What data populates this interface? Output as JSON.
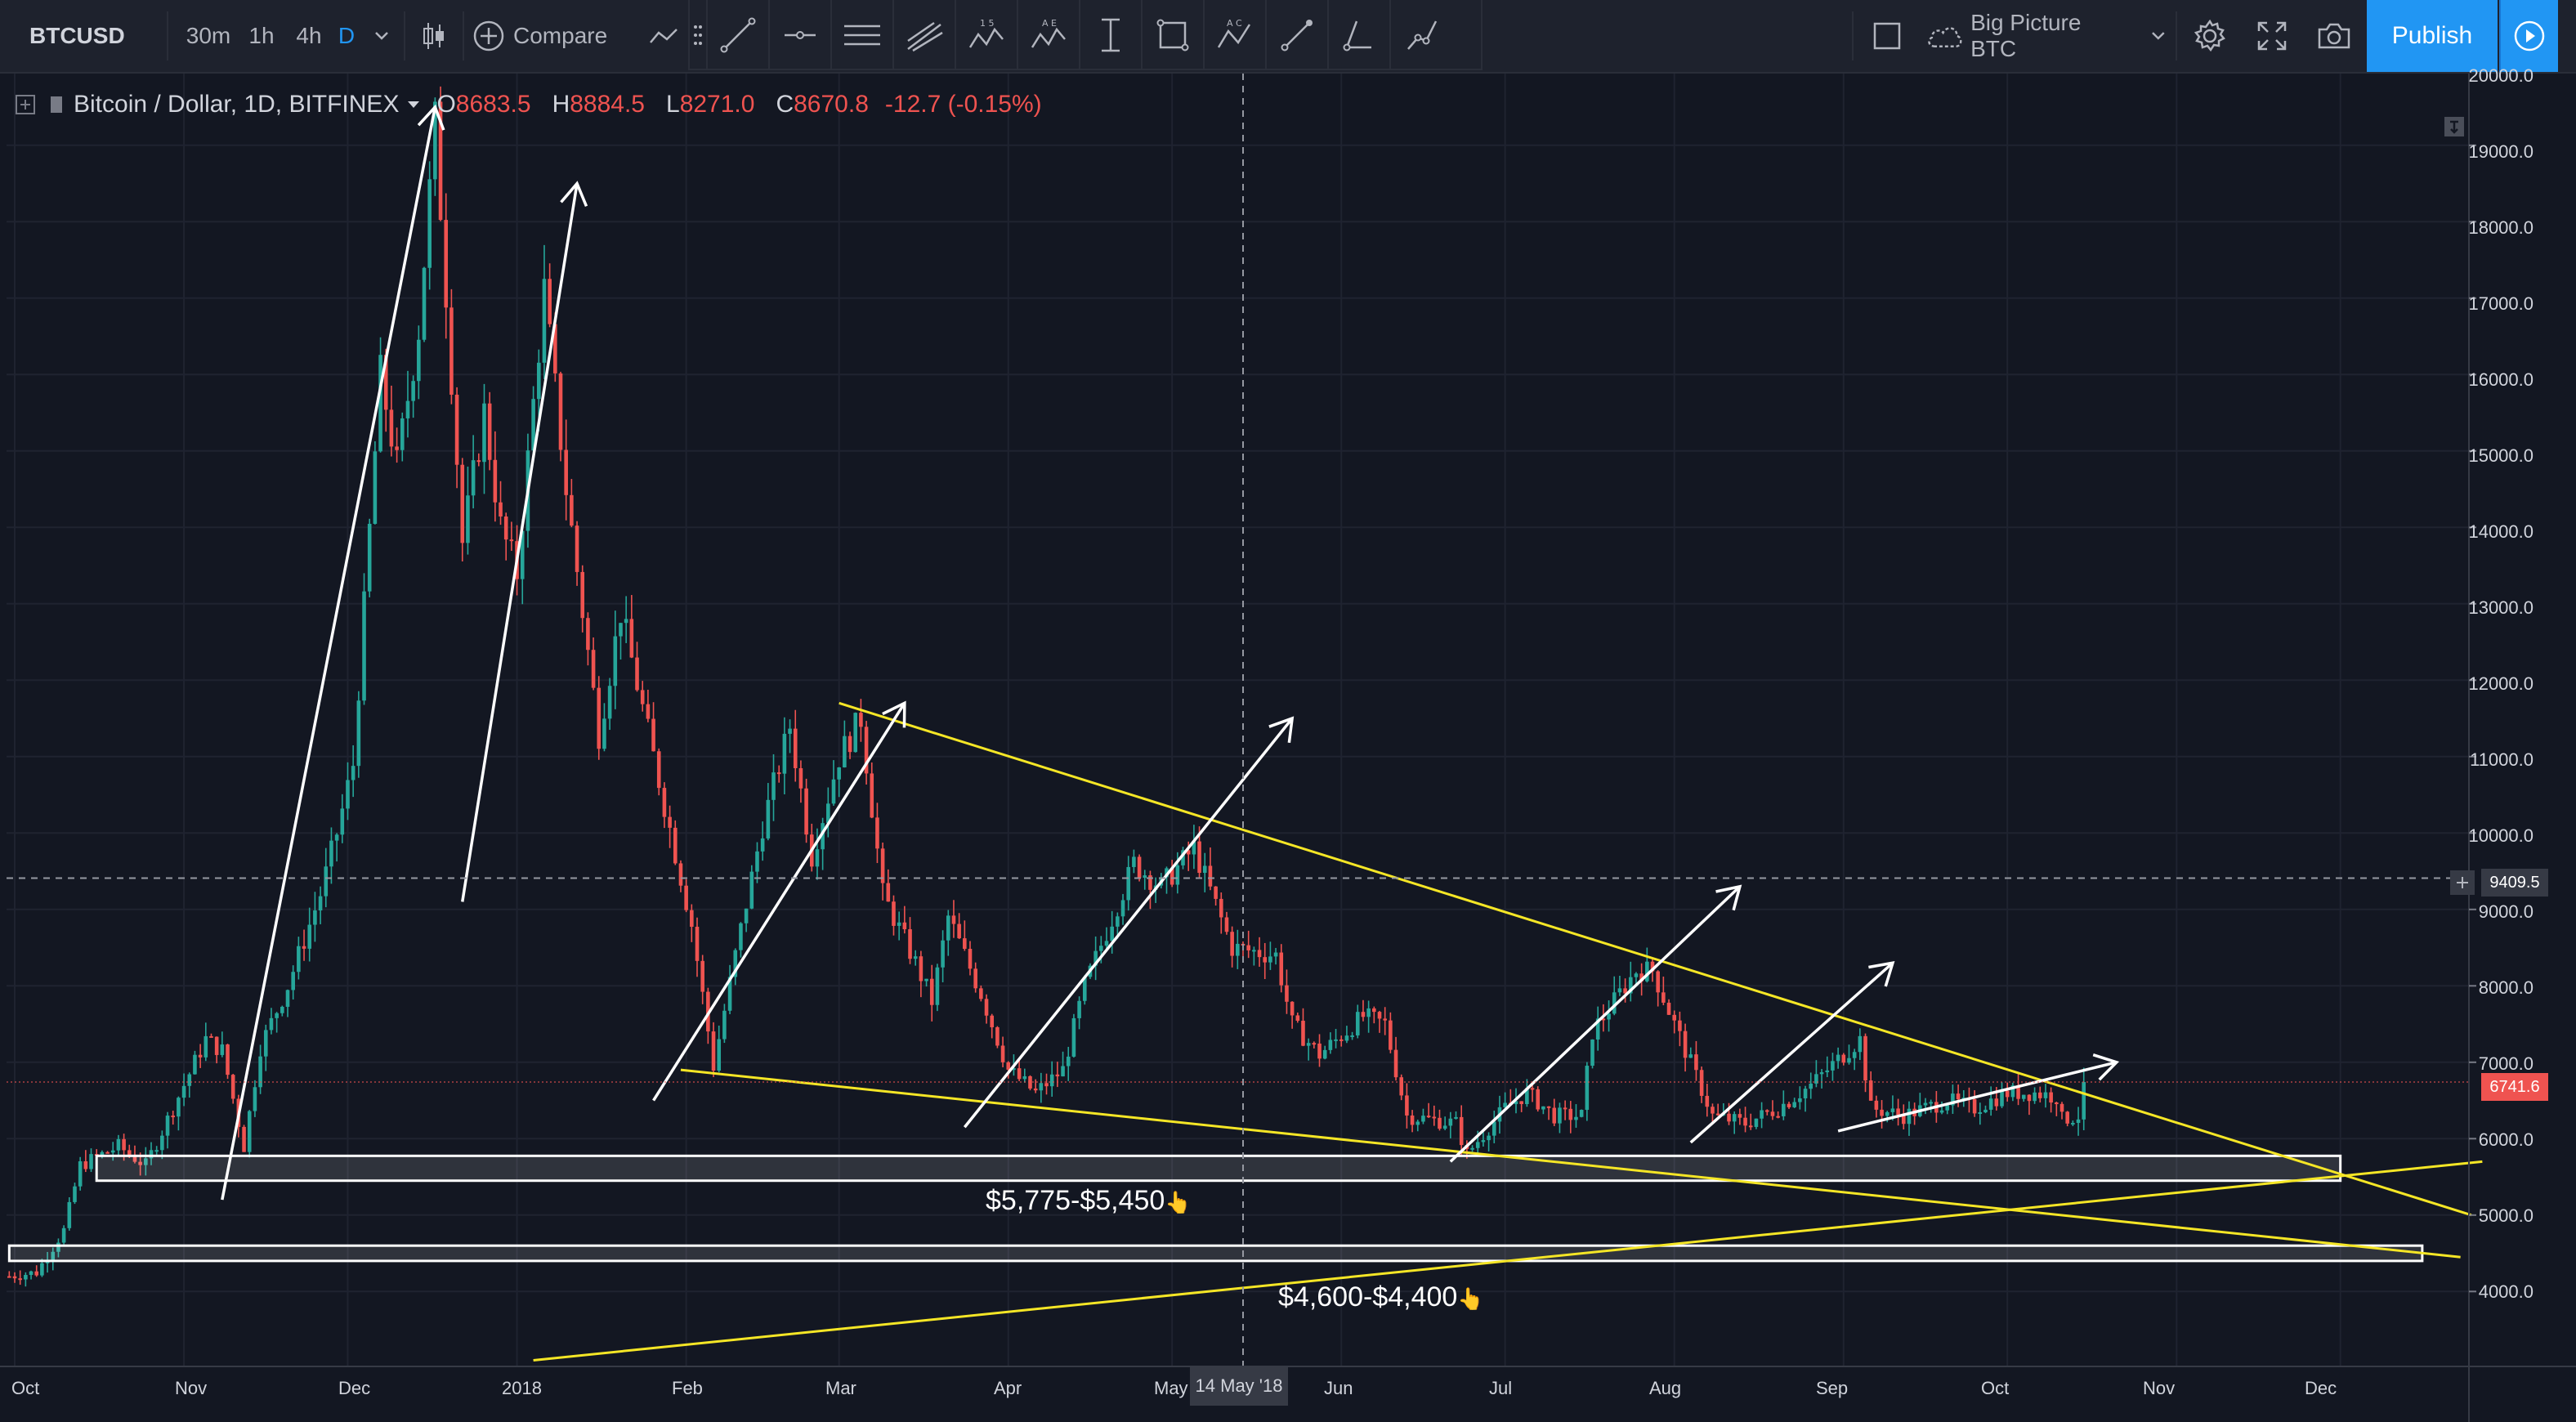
{
  "toolbar": {
    "symbol": "BTCUSD",
    "intervals": [
      "30m",
      "1h",
      "4h",
      "D"
    ],
    "active_interval": "D",
    "compare_label": "Compare",
    "layout_name": "Big Picture BTC",
    "publish_label": "Publish"
  },
  "legend": {
    "title": "Bitcoin / Dollar, 1D, BITFINEX",
    "open_label": "O",
    "open": "8683.5",
    "high_label": "H",
    "high": "8884.5",
    "low_label": "L",
    "low": "8271.0",
    "close_label": "C",
    "close": "8670.8",
    "change": "-12.7 (-0.15%)"
  },
  "price_scale": {
    "labels": [
      "20000.0",
      "19000.0",
      "18000.0",
      "17000.0",
      "16000.0",
      "15000.0",
      "14000.0",
      "13000.0",
      "12000.0",
      "11000.0",
      "10000.0",
      "9000.0",
      "8000.0",
      "7000.0",
      "6000.0",
      "5000.0",
      "4000.0"
    ],
    "crosshair_price": "9409.5",
    "last_price": "6741.6"
  },
  "time_scale": {
    "labels": [
      "Oct",
      "Nov",
      "Dec",
      "2018",
      "Feb",
      "Mar",
      "Apr",
      "May",
      "Jun",
      "Jul",
      "Aug",
      "Sep",
      "Oct",
      "Nov",
      "Dec"
    ],
    "crosshair_date": "14 May '18"
  },
  "annotations": {
    "zone_upper": "$5,775-$5,450",
    "zone_lower": "$4,600-$4,400",
    "pointer_glyph": "👆"
  },
  "colors": {
    "background": "#131722",
    "up": "#26a69a",
    "down": "#ef5350",
    "trendline": "#f5e626",
    "drawing": "#ffffff",
    "accent": "#2196f3"
  },
  "chart_data": {
    "type": "candlestick",
    "title": "Bitcoin / Dollar, 1D, BITFINEX",
    "ylim": [
      3100,
      20100
    ],
    "price_axis_ticks": [
      4000,
      5000,
      6000,
      7000,
      8000,
      9000,
      10000,
      11000,
      12000,
      13000,
      14000,
      15000,
      16000,
      17000,
      18000,
      19000,
      20000
    ],
    "x_range": [
      "2017-09-30",
      "2018-12-15"
    ],
    "close_path": [
      [
        "2017-09-30",
        4200
      ],
      [
        "2017-10-05",
        4250
      ],
      [
        "2017-10-10",
        4800
      ],
      [
        "2017-10-13",
        5650
      ],
      [
        "2017-10-20",
        5900
      ],
      [
        "2017-10-25",
        5650
      ],
      [
        "2017-11-01",
        6700
      ],
      [
        "2017-11-05",
        7300
      ],
      [
        "2017-11-08",
        7150
      ],
      [
        "2017-11-12",
        5900
      ],
      [
        "2017-11-15",
        7200
      ],
      [
        "2017-11-20",
        8000
      ],
      [
        "2017-11-26",
        9200
      ],
      [
        "2017-11-29",
        10000
      ],
      [
        "2017-12-02",
        10900
      ],
      [
        "2017-12-07",
        16000
      ],
      [
        "2017-12-10",
        14800
      ],
      [
        "2017-12-14",
        16600
      ],
      [
        "2017-12-17",
        19300
      ],
      [
        "2017-12-22",
        13800
      ],
      [
        "2017-12-26",
        15500
      ],
      [
        "2017-12-29",
        14000
      ],
      [
        "2018-01-01",
        13400
      ],
      [
        "2018-01-06",
        17100
      ],
      [
        "2018-01-10",
        14500
      ],
      [
        "2018-01-16",
        11300
      ],
      [
        "2018-01-20",
        12900
      ],
      [
        "2018-01-26",
        11000
      ],
      [
        "2018-02-02",
        8800
      ],
      [
        "2018-02-06",
        6950
      ],
      [
        "2018-02-10",
        8400
      ],
      [
        "2018-02-15",
        10100
      ],
      [
        "2018-02-20",
        11400
      ],
      [
        "2018-02-24",
        9700
      ],
      [
        "2018-03-01",
        11000
      ],
      [
        "2018-03-05",
        11500
      ],
      [
        "2018-03-09",
        9200
      ],
      [
        "2018-03-15",
        8300
      ],
      [
        "2018-03-18",
        7800
      ],
      [
        "2018-03-21",
        8900
      ],
      [
        "2018-03-27",
        7900
      ],
      [
        "2018-04-01",
        6900
      ],
      [
        "2018-04-06",
        6600
      ],
      [
        "2018-04-11",
        6900
      ],
      [
        "2018-04-15",
        8000
      ],
      [
        "2018-04-24",
        9600
      ],
      [
        "2018-04-29",
        9300
      ],
      [
        "2018-05-05",
        9800
      ],
      [
        "2018-05-12",
        8500
      ],
      [
        "2018-05-20",
        8400
      ],
      [
        "2018-05-23",
        7500
      ],
      [
        "2018-05-28",
        7100
      ],
      [
        "2018-06-05",
        7600
      ],
      [
        "2018-06-09",
        7500
      ],
      [
        "2018-06-13",
        6300
      ],
      [
        "2018-06-22",
        6200
      ],
      [
        "2018-06-24",
        5800
      ],
      [
        "2018-07-01",
        6400
      ],
      [
        "2018-07-05",
        6600
      ],
      [
        "2018-07-10",
        6300
      ],
      [
        "2018-07-15",
        6300
      ],
      [
        "2018-07-17",
        7400
      ],
      [
        "2018-07-25",
        8200
      ],
      [
        "2018-07-28",
        8200
      ],
      [
        "2018-08-01",
        7500
      ],
      [
        "2018-08-08",
        6300
      ],
      [
        "2018-08-14",
        6200
      ],
      [
        "2018-08-20",
        6400
      ],
      [
        "2018-08-26",
        6700
      ],
      [
        "2018-09-04",
        7300
      ],
      [
        "2018-09-06",
        6400
      ],
      [
        "2018-09-12",
        6300
      ],
      [
        "2018-09-20",
        6500
      ],
      [
        "2018-09-25",
        6400
      ],
      [
        "2018-10-01",
        6600
      ],
      [
        "2018-10-06",
        6600
      ],
      [
        "2018-10-10",
        6550
      ],
      [
        "2018-10-11",
        6250
      ],
      [
        "2018-10-14",
        6300
      ],
      [
        "2018-10-15",
        6741.6
      ]
    ],
    "support_zones": [
      {
        "label": "$5,775-$5,450",
        "low": 5450,
        "high": 5775
      },
      {
        "label": "$4,600-$4,400",
        "low": 4400,
        "high": 4600
      }
    ],
    "trendlines": [
      {
        "from": [
          "2018-03-01",
          11700
        ],
        "to": [
          "2018-12-25",
          5000
        ]
      },
      {
        "from": [
          "2018-01-31",
          6900
        ],
        "to": [
          "2018-12-23",
          4450
        ]
      },
      {
        "from": [
          "2018-01-04",
          3100
        ],
        "to": [
          "2018-12-27",
          5700
        ]
      }
    ],
    "arrows": [
      {
        "from": [
          "2017-11-08",
          5200
        ],
        "to": [
          "2017-12-17",
          19500
        ]
      },
      {
        "from": [
          "2017-12-22",
          9100
        ],
        "to": [
          "2018-01-12",
          18500
        ]
      },
      {
        "from": [
          "2018-01-26",
          6500
        ],
        "to": [
          "2018-03-13",
          11700
        ]
      },
      {
        "from": [
          "2018-03-24",
          6150
        ],
        "to": [
          "2018-05-23",
          11500
        ]
      },
      {
        "from": [
          "2018-06-21",
          5700
        ],
        "to": [
          "2018-08-13",
          9300
        ]
      },
      {
        "from": [
          "2018-08-04",
          5950
        ],
        "to": [
          "2018-09-10",
          8300
        ]
      },
      {
        "from": [
          "2018-08-31",
          6100
        ],
        "to": [
          "2018-10-21",
          7000
        ]
      }
    ],
    "crosshair": {
      "date": "2018-05-14",
      "price": 9409.5
    },
    "last_price": 6741.6
  }
}
